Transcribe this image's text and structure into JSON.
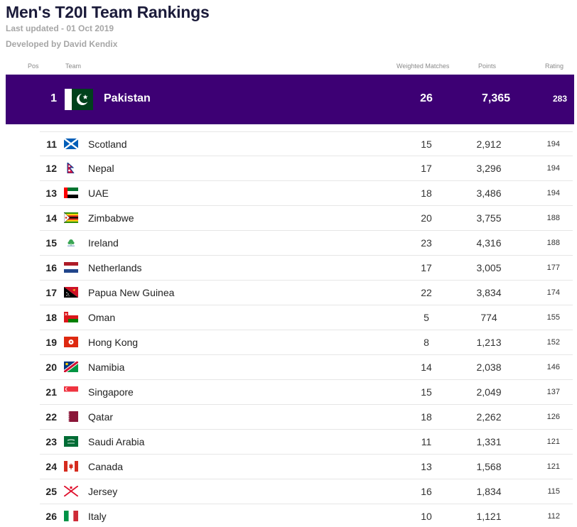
{
  "header": {
    "title": "Men's T20I Team Rankings",
    "last_updated": "Last updated - 01 Oct 2019",
    "developer": "Developed by David Kendix"
  },
  "columns": {
    "pos": "Pos",
    "team": "Team",
    "weighted_matches": "Weighted Matches",
    "points": "Points",
    "rating": "Rating"
  },
  "highlight": {
    "pos": "1",
    "team": "Pakistan",
    "flag": "pakistan-flag-icon",
    "weighted_matches": "26",
    "points": "7,365",
    "rating": "283"
  },
  "rows": [
    {
      "pos": "11",
      "team": "Scotland",
      "flag": "scotland-flag-icon",
      "weighted_matches": "15",
      "points": "2,912",
      "rating": "194"
    },
    {
      "pos": "12",
      "team": "Nepal",
      "flag": "nepal-flag-icon",
      "weighted_matches": "17",
      "points": "3,296",
      "rating": "194"
    },
    {
      "pos": "13",
      "team": "UAE",
      "flag": "uae-flag-icon",
      "weighted_matches": "18",
      "points": "3,486",
      "rating": "194"
    },
    {
      "pos": "14",
      "team": "Zimbabwe",
      "flag": "zimbabwe-flag-icon",
      "weighted_matches": "20",
      "points": "3,755",
      "rating": "188"
    },
    {
      "pos": "15",
      "team": "Ireland",
      "flag": "ireland-flag-icon",
      "weighted_matches": "23",
      "points": "4,316",
      "rating": "188"
    },
    {
      "pos": "16",
      "team": "Netherlands",
      "flag": "netherlands-flag-icon",
      "weighted_matches": "17",
      "points": "3,005",
      "rating": "177"
    },
    {
      "pos": "17",
      "team": "Papua New Guinea",
      "flag": "png-flag-icon",
      "weighted_matches": "22",
      "points": "3,834",
      "rating": "174"
    },
    {
      "pos": "18",
      "team": "Oman",
      "flag": "oman-flag-icon",
      "weighted_matches": "5",
      "points": "774",
      "rating": "155"
    },
    {
      "pos": "19",
      "team": "Hong Kong",
      "flag": "hong-kong-flag-icon",
      "weighted_matches": "8",
      "points": "1,213",
      "rating": "152"
    },
    {
      "pos": "20",
      "team": "Namibia",
      "flag": "namibia-flag-icon",
      "weighted_matches": "14",
      "points": "2,038",
      "rating": "146"
    },
    {
      "pos": "21",
      "team": "Singapore",
      "flag": "singapore-flag-icon",
      "weighted_matches": "15",
      "points": "2,049",
      "rating": "137"
    },
    {
      "pos": "22",
      "team": "Qatar",
      "flag": "qatar-flag-icon",
      "weighted_matches": "18",
      "points": "2,262",
      "rating": "126"
    },
    {
      "pos": "23",
      "team": "Saudi Arabia",
      "flag": "saudi-arabia-flag-icon",
      "weighted_matches": "11",
      "points": "1,331",
      "rating": "121"
    },
    {
      "pos": "24",
      "team": "Canada",
      "flag": "canada-flag-icon",
      "weighted_matches": "13",
      "points": "1,568",
      "rating": "121"
    },
    {
      "pos": "25",
      "team": "Jersey",
      "flag": "jersey-flag-icon",
      "weighted_matches": "16",
      "points": "1,834",
      "rating": "115"
    },
    {
      "pos": "26",
      "team": "Italy",
      "flag": "italy-flag-icon",
      "weighted_matches": "10",
      "points": "1,121",
      "rating": "112"
    }
  ],
  "colors": {
    "highlight_bg": "#3d0074",
    "title": "#1b1b3a",
    "subtitle": "#a6a6a6"
  }
}
